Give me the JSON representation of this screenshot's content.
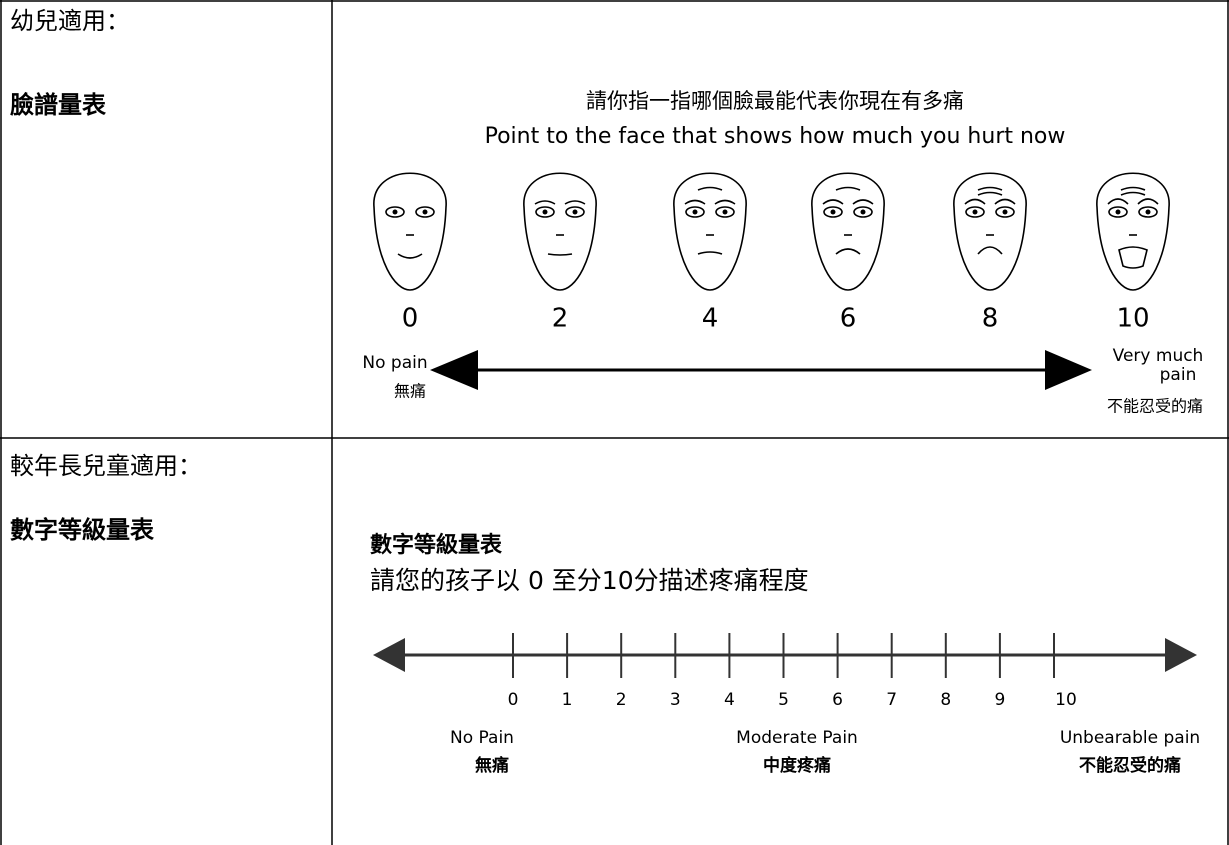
{
  "table": {
    "rows": [
      {
        "label": "幼兒適用：",
        "scale_name": "臉譜量表",
        "content": {
          "title": "請你指一指哪個臉最能代表你現在有多痛",
          "subtitle": "Point to the face that shows how much you hurt now",
          "face_scores": [
            0,
            2,
            4,
            6,
            8,
            10
          ],
          "left_label": [
            "No pain",
            "無痛"
          ],
          "right_label": [
            "Very much",
            "pain",
            "不能忍受的痛"
          ]
        }
      },
      {
        "label": "較年長兒童適用：",
        "scale_name": "數字等級量表",
        "content": {
          "title": "數字等級量表",
          "subtitle": "請您的孩子以 0 至分10分描述疼痛程度",
          "ticks": [
            0,
            1,
            2,
            3,
            4,
            5,
            6,
            7,
            8,
            9,
            10
          ],
          "anchors": [
            {
              "en": "No Pain",
              "zh": "無痛"
            },
            {
              "en": "Moderate Pain",
              "zh": "中度疼痛"
            },
            {
              "en": "Unbearable pain",
              "zh": "不能忍受的痛"
            }
          ]
        }
      }
    ]
  }
}
